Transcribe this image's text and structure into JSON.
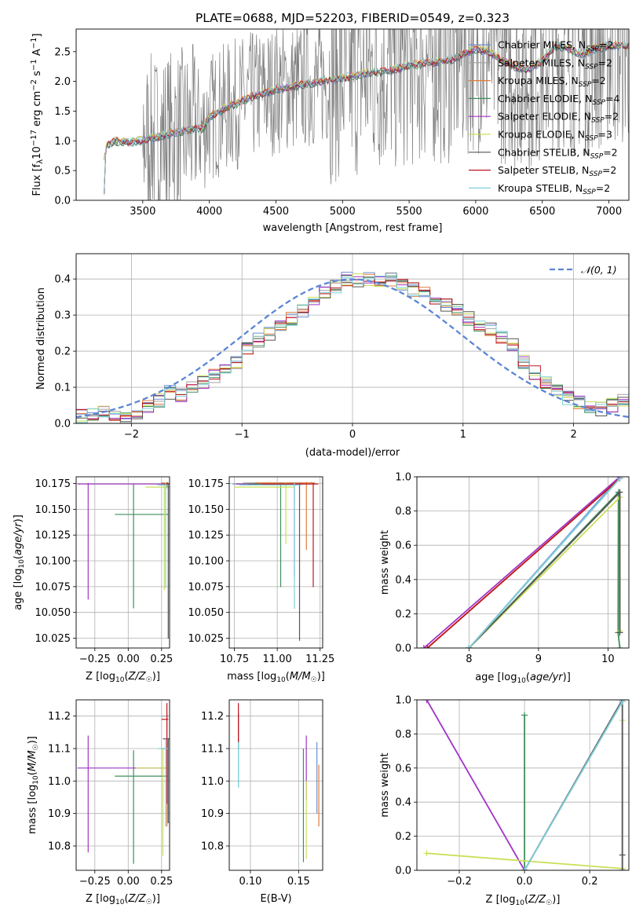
{
  "figure": {
    "title": "PLATE=0688, MJD=52203, FIBERID=0549, z=0.323"
  },
  "colors": {
    "Chabrier MILES": "#6b8fd6",
    "Salpeter MILES": "#a0a0a0",
    "Kroupa MILES": "#e07b39",
    "Chabrier ELODIE": "#3f8f5b",
    "Salpeter ELODIE": "#a234c8",
    "Kroupa ELODIE": "#c9e05a",
    "Chabrier STELIB": "#555555",
    "Salpeter STELIB": "#c0141e",
    "Kroupa STELIB": "#7fd1dc",
    "observed": "#808080",
    "normal": "#5b86d6",
    "grid": "#b0b0b0"
  },
  "chart_data": [
    {
      "id": "spectrum",
      "type": "line",
      "title": "PLATE=0688, MJD=52203, FIBERID=0549, z=0.323",
      "xlabel": "wavelength [Angstrom, rest frame]",
      "ylabel": "Flux [f_λ 10^-17 erg cm^-2 s^-1 A^-1]",
      "xlim": [
        3000,
        7150
      ],
      "ylim": [
        0,
        2.88
      ],
      "xticks": [
        3500,
        4000,
        4500,
        5000,
        5500,
        6000,
        6500,
        7000
      ],
      "yticks": [
        0.0,
        0.5,
        1.0,
        1.5,
        2.0,
        2.5
      ],
      "grid": false,
      "legend_position": "right",
      "legend": [
        "Chabrier MILES, N_SSP=2",
        "Salpeter MILES, N_SSP=2",
        "Kroupa MILES, N_SSP=2",
        "Chabrier ELODIE, N_SSP=4",
        "Salpeter ELODIE, N_SSP=2",
        "Kroupa ELODIE, N_SSP=3",
        "Chabrier STELIB, N_SSP=2",
        "Salpeter STELIB, N_SSP=2",
        "Kroupa STELIB, N_SSP=2"
      ],
      "model_continuum": {
        "x": [
          3210,
          3230,
          3260,
          3300,
          3350,
          3400,
          3450,
          3500,
          3600,
          3700,
          3800,
          3900,
          3950,
          4000,
          4100,
          4200,
          4300,
          4400,
          4500,
          4600,
          4700,
          4800,
          4900,
          5000,
          5100,
          5200,
          5300,
          5400,
          5500,
          5600,
          5700,
          5800,
          5900,
          6000,
          6100,
          6200,
          6300,
          6400,
          6500,
          6600,
          6700,
          6800,
          6900,
          7000
        ],
        "y": [
          0.72,
          0.92,
          0.97,
          1.0,
          0.98,
          0.97,
          0.99,
          1.01,
          1.06,
          1.12,
          1.16,
          1.22,
          1.2,
          1.4,
          1.52,
          1.62,
          1.73,
          1.8,
          1.87,
          1.9,
          1.95,
          1.98,
          2.02,
          2.05,
          2.1,
          2.15,
          2.17,
          2.2,
          2.28,
          2.3,
          2.32,
          2.35,
          2.45,
          2.55,
          2.5,
          2.35,
          2.25,
          2.2,
          2.35,
          2.6,
          2.55,
          2.45,
          2.55,
          2.6
        ]
      }
    },
    {
      "id": "residuals",
      "type": "line",
      "xlabel": "(data-model)/error",
      "ylabel": "Normed distribution",
      "xlim": [
        -2.5,
        2.5
      ],
      "ylim": [
        0,
        0.47
      ],
      "xticks": [
        -2,
        -1,
        0,
        1,
        2
      ],
      "yticks": [
        0.0,
        0.1,
        0.2,
        0.3,
        0.4
      ],
      "grid": true,
      "legend_position": "top-right",
      "legend": [
        "N(0,1)"
      ],
      "bin_edges": [
        -2.5,
        -2.4,
        -2.3,
        -2.2,
        -2.1,
        -2.0,
        -1.9,
        -1.8,
        -1.7,
        -1.6,
        -1.5,
        -1.4,
        -1.3,
        -1.2,
        -1.1,
        -1.0,
        -0.9,
        -0.8,
        -0.7,
        -0.6,
        -0.5,
        -0.4,
        -0.3,
        -0.2,
        -0.1,
        0.0,
        0.1,
        0.2,
        0.3,
        0.4,
        0.5,
        0.6,
        0.7,
        0.8,
        0.9,
        1.0,
        1.1,
        1.2,
        1.3,
        1.4,
        1.5,
        1.6,
        1.7,
        1.8,
        1.9,
        2.0,
        2.1,
        2.2,
        2.3,
        2.4,
        2.5
      ],
      "base_histogram": [
        0.02,
        0.025,
        0.03,
        0.025,
        0.02,
        0.03,
        0.05,
        0.065,
        0.085,
        0.08,
        0.1,
        0.115,
        0.13,
        0.15,
        0.17,
        0.21,
        0.23,
        0.25,
        0.27,
        0.29,
        0.31,
        0.34,
        0.36,
        0.38,
        0.4,
        0.395,
        0.4,
        0.39,
        0.4,
        0.38,
        0.37,
        0.36,
        0.34,
        0.33,
        0.31,
        0.29,
        0.27,
        0.26,
        0.24,
        0.22,
        0.17,
        0.14,
        0.11,
        0.09,
        0.07,
        0.06,
        0.045,
        0.04,
        0.05,
        0.06
      ]
    },
    {
      "id": "age-vs-Z",
      "type": "scatter",
      "xlabel": "Z [log10(Z/Z☉)]",
      "ylabel": "age [log10(age/yr)]",
      "xlim": [
        -0.39,
        0.31
      ],
      "ylim": [
        10.0155,
        10.1815
      ],
      "xticks": [
        -0.25,
        0.0,
        0.25
      ],
      "yticks": [
        10.025,
        10.05,
        10.075,
        10.1,
        10.125,
        10.15,
        10.175
      ],
      "grid": true,
      "errorbars": [
        {
          "model": "Chabrier MILES",
          "x": 0.29,
          "y": 10.1745,
          "xerr": [
            0.04,
            0.01
          ],
          "yerr": [
            0.004,
            0.001
          ]
        },
        {
          "model": "Kroupa MILES",
          "x": 0.295,
          "y": 10.1755,
          "xerr": [
            0.05,
            0.005
          ],
          "yerr": [
            0.003,
            0.001
          ]
        },
        {
          "model": "Chabrier ELODIE",
          "x": 0.04,
          "y": 10.145,
          "xerr": [
            0.14,
            0.26
          ],
          "yerr": [
            0.091,
            0.03
          ]
        },
        {
          "model": "Salpeter ELODIE",
          "x": -0.3,
          "y": 10.1745,
          "xerr": [
            0.08,
            0.6
          ],
          "yerr": [
            0.112,
            0.001
          ]
        },
        {
          "model": "Kroupa ELODIE",
          "x": 0.27,
          "y": 10.1715,
          "xerr": [
            0.14,
            0.04
          ],
          "yerr": [
            0.1,
            0.004
          ]
        },
        {
          "model": "Chabrier STELIB",
          "x": 0.3,
          "y": 10.1745,
          "xerr": [
            0.04,
            0.01
          ],
          "yerr": [
            0.15,
            0.001
          ]
        },
        {
          "model": "Salpeter STELIB",
          "x": 0.29,
          "y": 10.1745,
          "xerr": [
            0.02,
            0.01
          ],
          "yerr": [
            0.001,
            0.001
          ]
        },
        {
          "model": "Kroupa STELIB",
          "x": 0.28,
          "y": 10.1735,
          "xerr": [
            0.06,
            0.02
          ],
          "yerr": [
            0.1,
            0.002
          ]
        }
      ]
    },
    {
      "id": "age-vs-mass",
      "type": "scatter",
      "xlabel": "mass [log10(M/M☉)]",
      "ylabel": "",
      "xlim": [
        10.72,
        11.265
      ],
      "ylim": [
        10.0155,
        10.1815
      ],
      "xticks": [
        10.75,
        11.0,
        11.25
      ],
      "yticks": [
        10.025,
        10.05,
        10.075,
        10.1,
        10.125,
        10.15,
        10.175
      ],
      "grid": true,
      "errorbars": [
        {
          "model": "Chabrier MILES",
          "x": 11.17,
          "y": 10.1745,
          "xerr": [
            0.43,
            0.05
          ],
          "yerr": [
            0.001,
            0.001
          ]
        },
        {
          "model": "Salpeter MILES",
          "x": 11.2,
          "y": 10.1755,
          "xerr": [
            0.4,
            0.02
          ],
          "yerr": [
            0.001,
            0.001
          ]
        },
        {
          "model": "Kroupa MILES",
          "x": 11.17,
          "y": 10.1755,
          "xerr": [
            0.3,
            0.05
          ],
          "yerr": [
            0.065,
            0.001
          ]
        },
        {
          "model": "Chabrier ELODIE",
          "x": 11.02,
          "y": 10.1745,
          "xerr": [
            0.26,
            0.03
          ],
          "yerr": [
            0.1,
            0.001
          ]
        },
        {
          "model": "Salpeter ELODIE",
          "x": 11.1,
          "y": 10.1745,
          "xerr": [
            0.34,
            0.05
          ],
          "yerr": [
            0.09,
            0.001
          ]
        },
        {
          "model": "Kroupa ELODIE",
          "x": 11.05,
          "y": 10.1715,
          "xerr": [
            0.3,
            0.05
          ],
          "yerr": [
            0.055,
            0.004
          ]
        },
        {
          "model": "Chabrier STELIB",
          "x": 11.13,
          "y": 10.1745,
          "xerr": [
            0.3,
            0.02
          ],
          "yerr": [
            0.152,
            0.001
          ]
        },
        {
          "model": "Salpeter STELIB",
          "x": 11.21,
          "y": 10.1745,
          "xerr": [
            0.3,
            0.03
          ],
          "yerr": [
            0.1,
            0.001
          ]
        },
        {
          "model": "Kroupa STELIB",
          "x": 11.1,
          "y": 10.1735,
          "xerr": [
            0.32,
            0.04
          ],
          "yerr": [
            0.12,
            0.002
          ]
        }
      ]
    },
    {
      "id": "weight-vs-age",
      "type": "line",
      "xlabel": "age [log10(age/yr)]",
      "ylabel": "mass weight",
      "xlim": [
        7.25,
        10.3
      ],
      "ylim": [
        0,
        1.0
      ],
      "xticks": [
        8,
        9,
        10
      ],
      "yticks": [
        0.0,
        0.2,
        0.4,
        0.6,
        0.8,
        1.0
      ],
      "grid": true,
      "series": [
        {
          "model": "Chabrier MILES",
          "x": [
            8.0,
            10.17
          ],
          "y": [
            0.0,
            1.0
          ]
        },
        {
          "model": "Salpeter MILES",
          "x": [
            8.0,
            10.17
          ],
          "y": [
            0.0,
            0.99
          ]
        },
        {
          "model": "Kroupa MILES",
          "x": [
            7.4,
            10.17
          ],
          "y": [
            0.0,
            0.99
          ]
        },
        {
          "model": "Chabrier ELODIE",
          "x": [
            8.0,
            10.15,
            10.145,
            10.17
          ],
          "y": [
            0.0,
            0.91,
            0.09,
            0.0
          ]
        },
        {
          "model": "Salpeter ELODIE",
          "x": [
            7.35,
            10.17
          ],
          "y": [
            0.0,
            1.0
          ]
        },
        {
          "model": "Kroupa ELODIE",
          "x": [
            8.0,
            10.17,
            10.17
          ],
          "y": [
            0.0,
            0.88,
            0.1
          ]
        },
        {
          "model": "Chabrier STELIB",
          "x": [
            8.0,
            10.17,
            10.17
          ],
          "y": [
            0.0,
            0.91,
            0.09
          ]
        },
        {
          "model": "Salpeter STELIB",
          "x": [
            7.4,
            10.17
          ],
          "y": [
            0.0,
            0.99
          ]
        },
        {
          "model": "Kroupa STELIB",
          "x": [
            8.0,
            10.17
          ],
          "y": [
            0.0,
            0.99
          ]
        }
      ]
    },
    {
      "id": "mass-vs-Z",
      "type": "scatter",
      "xlabel": "Z [log10(Z/Z☉)]",
      "ylabel": "mass [log10(M/M☉)]",
      "xlim": [
        -0.39,
        0.31
      ],
      "ylim": [
        10.725,
        11.25
      ],
      "xticks": [
        -0.25,
        0.0,
        0.25
      ],
      "yticks": [
        10.8,
        10.9,
        11.0,
        11.1,
        11.2
      ],
      "grid": true,
      "errorbars": [
        {
          "model": "Chabrier MILES",
          "x": 0.29,
          "y": 11.1,
          "xerr": [
            0.04,
            0.01
          ],
          "yerr": [
            0.23,
            0.02
          ]
        },
        {
          "model": "Salpeter MILES",
          "x": 0.29,
          "y": 11.2,
          "xerr": [
            0.04,
            0.01
          ],
          "yerr": [
            0.3,
            0.01
          ]
        },
        {
          "model": "Kroupa MILES",
          "x": 0.29,
          "y": 11.1,
          "xerr": [
            0.04,
            0.01
          ],
          "yerr": [
            0.24,
            0.02
          ]
        },
        {
          "model": "Chabrier ELODIE",
          "x": 0.04,
          "y": 11.015,
          "xerr": [
            0.14,
            0.26
          ],
          "yerr": [
            0.27,
            0.08
          ]
        },
        {
          "model": "Salpeter ELODIE",
          "x": -0.3,
          "y": 11.04,
          "xerr": [
            0.08,
            0.6
          ],
          "yerr": [
            0.26,
            0.1
          ]
        },
        {
          "model": "Kroupa ELODIE",
          "x": 0.26,
          "y": 11.04,
          "xerr": [
            0.2,
            0.05
          ],
          "yerr": [
            0.27,
            0.06
          ]
        },
        {
          "model": "Chabrier STELIB",
          "x": 0.3,
          "y": 11.13,
          "xerr": [
            0.04,
            0.01
          ],
          "yerr": [
            0.26,
            0.0
          ]
        },
        {
          "model": "Salpeter STELIB",
          "x": 0.29,
          "y": 11.19,
          "xerr": [
            0.04,
            0.01
          ],
          "yerr": [
            0.26,
            0.05
          ]
        },
        {
          "model": "Kroupa STELIB",
          "x": 0.28,
          "y": 11.1,
          "xerr": [
            0.06,
            0.02
          ],
          "yerr": [
            0.24,
            0.03
          ]
        }
      ]
    },
    {
      "id": "mass-vs-ebv",
      "type": "scatter",
      "xlabel": "E(B-V)",
      "ylabel": "",
      "xlim": [
        0.078,
        0.175
      ],
      "ylim": [
        10.725,
        11.25
      ],
      "xticks": [
        0.1,
        0.15
      ],
      "yticks": [
        10.8,
        10.9,
        11.0,
        11.1,
        11.2
      ],
      "grid": true,
      "errorbars": [
        {
          "model": "Chabrier MILES",
          "x": 0.169,
          "y": 11.04,
          "xerr": [
            0,
            0
          ],
          "yerr": [
            0.14,
            0.08
          ]
        },
        {
          "model": "Salpeter MILES",
          "x": 0.0875,
          "y": 11.08,
          "xerr": [
            0,
            0
          ],
          "yerr": [
            0.1,
            0.05
          ]
        },
        {
          "model": "Kroupa MILES",
          "x": 0.171,
          "y": 10.95,
          "xerr": [
            0,
            0
          ],
          "yerr": [
            0.09,
            0.1
          ]
        },
        {
          "model": "Chabrier ELODIE",
          "x": 0.155,
          "y": 10.95,
          "xerr": [
            0,
            0
          ],
          "yerr": [
            0.2,
            0.15
          ]
        },
        {
          "model": "Salpeter ELODIE",
          "x": 0.158,
          "y": 11.04,
          "xerr": [
            0,
            0
          ],
          "yerr": [
            0.1,
            0.1
          ]
        },
        {
          "model": "Kroupa ELODIE",
          "x": 0.158,
          "y": 10.9,
          "xerr": [
            0,
            0
          ],
          "yerr": [
            0.14,
            0.1
          ]
        },
        {
          "model": "Chabrier STELIB",
          "x": 0.0875,
          "y": 11.15,
          "xerr": [
            0,
            0
          ],
          "yerr": [
            0.05,
            0.06
          ]
        },
        {
          "model": "Salpeter STELIB",
          "x": 0.0875,
          "y": 11.17,
          "xerr": [
            0,
            0
          ],
          "yerr": [
            0.05,
            0.07
          ]
        },
        {
          "model": "Kroupa STELIB",
          "x": 0.0875,
          "y": 11.05,
          "xerr": [
            0,
            0
          ],
          "yerr": [
            0.07,
            0.07
          ]
        }
      ]
    },
    {
      "id": "weight-vs-Z",
      "type": "line",
      "xlabel": "Z [log10(Z/Z☉)]",
      "ylabel": "mass weight",
      "xlim": [
        -0.33,
        0.32
      ],
      "ylim": [
        0,
        1.0
      ],
      "xticks": [
        -0.2,
        0.0,
        0.2
      ],
      "yticks": [
        0.0,
        0.2,
        0.4,
        0.6,
        0.8,
        1.0
      ],
      "grid": true,
      "series": [
        {
          "model": "Chabrier MILES",
          "x": [
            0.0,
            0.3
          ],
          "y": [
            0.0,
            1.0
          ]
        },
        {
          "model": "Kroupa MILES",
          "x": [
            0.0,
            0.3
          ],
          "y": [
            0.0,
            0.99
          ]
        },
        {
          "model": "Chabrier ELODIE",
          "x": [
            0.0,
            0.0,
            0.0
          ],
          "y": [
            0.0,
            0.91,
            0.0
          ]
        },
        {
          "model": "Salpeter ELODIE",
          "x": [
            -0.3,
            0.0
          ],
          "y": [
            1.0,
            0.0
          ]
        },
        {
          "model": "Kroupa ELODIE",
          "x": [
            -0.3,
            0.3,
            0.3,
            0.3
          ],
          "y": [
            0.1,
            0.01,
            0.88,
            0.01
          ]
        },
        {
          "model": "Chabrier STELIB",
          "x": [
            0.0,
            0.3,
            0.3,
            0.3
          ],
          "y": [
            0.0,
            1.0,
            0.09,
            0.0
          ]
        },
        {
          "model": "Kroupa STELIB",
          "x": [
            0.0,
            0.3
          ],
          "y": [
            0.0,
            0.99
          ]
        }
      ]
    }
  ]
}
